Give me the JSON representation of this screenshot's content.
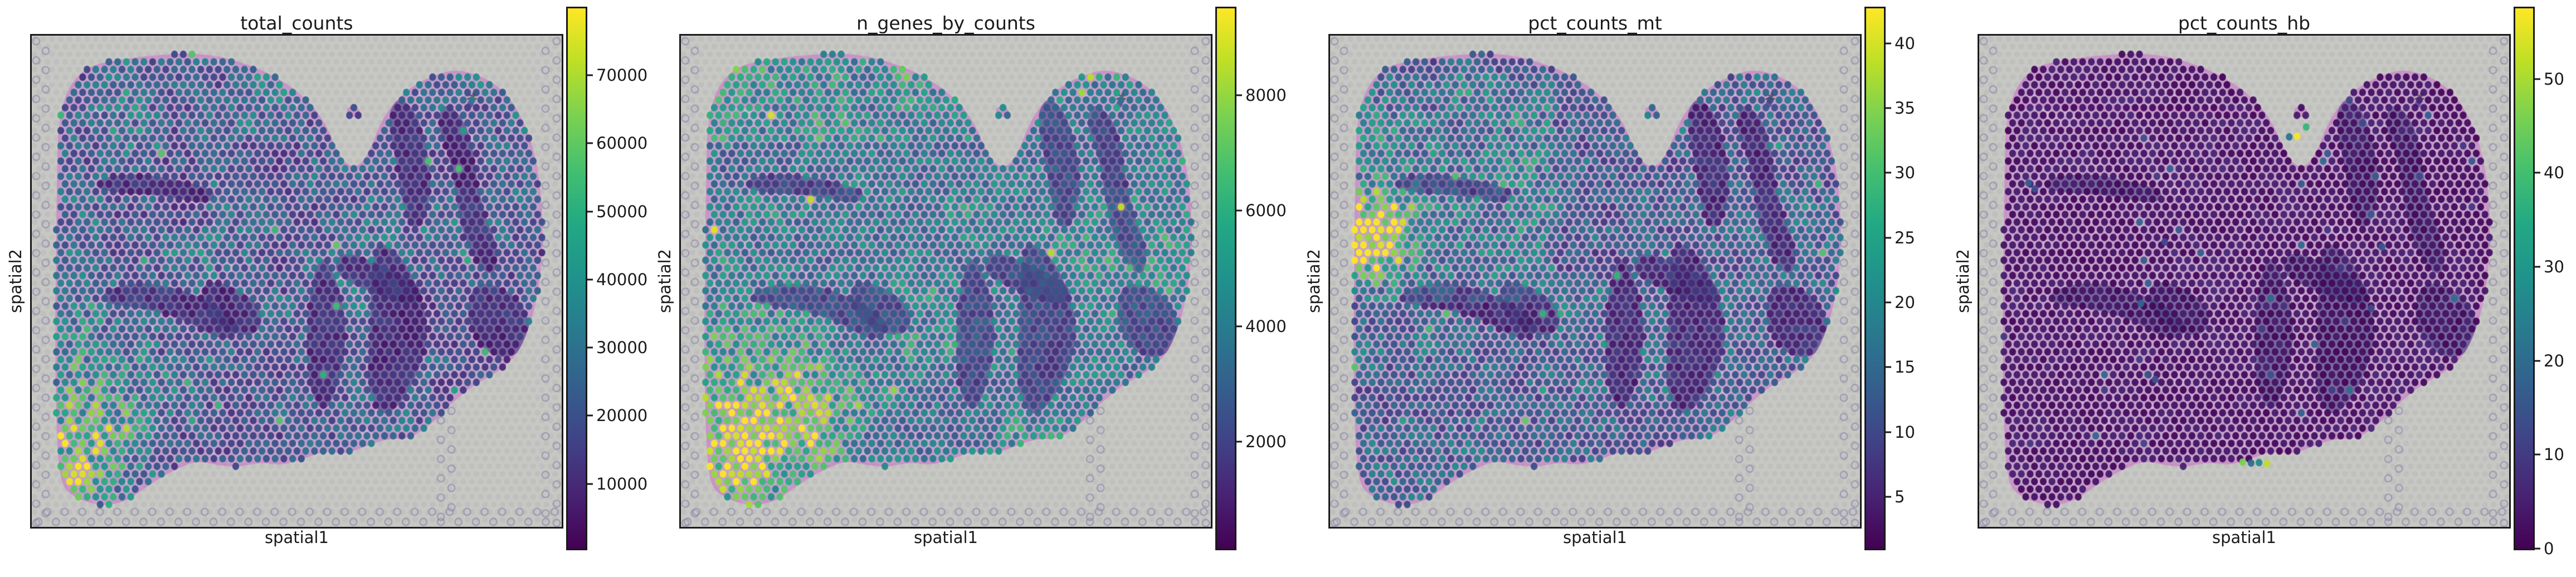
{
  "figure": {
    "kind": "spatial-qc-figure",
    "xlabel": "spatial1",
    "ylabel": "spatial2",
    "colormap": "viridis",
    "background_color": "#ffffff"
  },
  "scene": {
    "background_color": "#c7c8c4",
    "tissue_base_color": "#c2a0c9",
    "tissue_rim_color": "rgba(215,128,198,0.45)",
    "dense_region_color": "rgba(60,60,126,0.40)",
    "fiducial_ring_color": "rgba(130,124,158,0.55)",
    "grid_spacing": [
      15.7,
      13.7
    ],
    "spot_radius": [
      6.1,
      6.7
    ],
    "tissue_outline": [
      [
        0.05,
        0.175
      ],
      [
        0.068,
        0.105
      ],
      [
        0.105,
        0.062
      ],
      [
        0.16,
        0.05
      ],
      [
        0.24,
        0.038
      ],
      [
        0.33,
        0.036
      ],
      [
        0.41,
        0.058
      ],
      [
        0.475,
        0.092
      ],
      [
        0.525,
        0.135
      ],
      [
        0.555,
        0.18
      ],
      [
        0.572,
        0.225
      ],
      [
        0.59,
        0.26
      ],
      [
        0.615,
        0.27
      ],
      [
        0.638,
        0.235
      ],
      [
        0.655,
        0.185
      ],
      [
        0.68,
        0.14
      ],
      [
        0.715,
        0.105
      ],
      [
        0.755,
        0.082
      ],
      [
        0.8,
        0.068
      ],
      [
        0.85,
        0.082
      ],
      [
        0.895,
        0.115
      ],
      [
        0.93,
        0.175
      ],
      [
        0.952,
        0.25
      ],
      [
        0.962,
        0.33
      ],
      [
        0.965,
        0.42
      ],
      [
        0.958,
        0.51
      ],
      [
        0.942,
        0.585
      ],
      [
        0.918,
        0.648
      ],
      [
        0.88,
        0.685
      ],
      [
        0.835,
        0.71
      ],
      [
        0.79,
        0.75
      ],
      [
        0.75,
        0.795
      ],
      [
        0.71,
        0.822
      ],
      [
        0.672,
        0.82
      ],
      [
        0.632,
        0.835
      ],
      [
        0.592,
        0.852
      ],
      [
        0.552,
        0.845
      ],
      [
        0.512,
        0.862
      ],
      [
        0.472,
        0.875
      ],
      [
        0.432,
        0.868
      ],
      [
        0.392,
        0.878
      ],
      [
        0.352,
        0.875
      ],
      [
        0.312,
        0.865
      ],
      [
        0.272,
        0.882
      ],
      [
        0.235,
        0.905
      ],
      [
        0.205,
        0.928
      ],
      [
        0.175,
        0.95
      ],
      [
        0.125,
        0.958
      ],
      [
        0.07,
        0.935
      ],
      [
        0.052,
        0.9
      ],
      [
        0.046,
        0.78
      ],
      [
        0.044,
        0.62
      ],
      [
        0.046,
        0.42
      ],
      [
        0.048,
        0.28
      ]
    ],
    "dense_regions": [
      [
        [
          0.695,
          0.125
        ],
        [
          0.725,
          0.155
        ],
        [
          0.745,
          0.22
        ],
        [
          0.755,
          0.3
        ],
        [
          0.745,
          0.37
        ],
        [
          0.72,
          0.4
        ],
        [
          0.7,
          0.35
        ],
        [
          0.69,
          0.27
        ],
        [
          0.675,
          0.19
        ],
        [
          0.675,
          0.15
        ]
      ],
      [
        [
          0.775,
          0.135
        ],
        [
          0.81,
          0.16
        ],
        [
          0.832,
          0.22
        ],
        [
          0.84,
          0.3
        ],
        [
          0.858,
          0.375
        ],
        [
          0.88,
          0.43
        ],
        [
          0.875,
          0.49
        ],
        [
          0.845,
          0.475
        ],
        [
          0.815,
          0.41
        ],
        [
          0.8,
          0.33
        ],
        [
          0.79,
          0.25
        ],
        [
          0.765,
          0.185
        ]
      ],
      [
        [
          0.845,
          0.5
        ],
        [
          0.895,
          0.515
        ],
        [
          0.933,
          0.555
        ],
        [
          0.942,
          0.615
        ],
        [
          0.905,
          0.66
        ],
        [
          0.855,
          0.645
        ],
        [
          0.822,
          0.585
        ],
        [
          0.825,
          0.53
        ]
      ],
      [
        [
          0.655,
          0.415
        ],
        [
          0.7,
          0.45
        ],
        [
          0.732,
          0.52
        ],
        [
          0.75,
          0.6
        ],
        [
          0.732,
          0.68
        ],
        [
          0.7,
          0.745
        ],
        [
          0.662,
          0.78
        ],
        [
          0.632,
          0.72
        ],
        [
          0.638,
          0.62
        ],
        [
          0.64,
          0.52
        ],
        [
          0.642,
          0.455
        ]
      ],
      [
        [
          0.548,
          0.44
        ],
        [
          0.578,
          0.5
        ],
        [
          0.596,
          0.6
        ],
        [
          0.582,
          0.7
        ],
        [
          0.553,
          0.775
        ],
        [
          0.522,
          0.72
        ],
        [
          0.518,
          0.6
        ],
        [
          0.528,
          0.5
        ]
      ],
      [
        [
          0.582,
          0.435
        ],
        [
          0.66,
          0.465
        ],
        [
          0.745,
          0.515
        ],
        [
          0.72,
          0.555
        ],
        [
          0.635,
          0.52
        ],
        [
          0.568,
          0.485
        ]
      ],
      [
        [
          0.125,
          0.29
        ],
        [
          0.2,
          0.28
        ],
        [
          0.28,
          0.295
        ],
        [
          0.35,
          0.315
        ],
        [
          0.335,
          0.345
        ],
        [
          0.25,
          0.325
        ],
        [
          0.165,
          0.32
        ],
        [
          0.122,
          0.312
        ]
      ],
      [
        [
          0.135,
          0.52
        ],
        [
          0.2,
          0.5
        ],
        [
          0.28,
          0.515
        ],
        [
          0.355,
          0.55
        ],
        [
          0.4,
          0.595
        ],
        [
          0.362,
          0.625
        ],
        [
          0.285,
          0.575
        ],
        [
          0.2,
          0.553
        ],
        [
          0.133,
          0.545
        ]
      ],
      [
        [
          0.325,
          0.495
        ],
        [
          0.395,
          0.515
        ],
        [
          0.44,
          0.565
        ],
        [
          0.422,
          0.615
        ],
        [
          0.36,
          0.6
        ],
        [
          0.318,
          0.55
        ]
      ]
    ],
    "island": {
      "u": 0.607,
      "v": 0.155,
      "rx": 12,
      "ry": 9
    },
    "artifact": {
      "u": 0.829,
      "v": 0.131
    }
  },
  "chart_data": [
    {
      "type": "scatter",
      "title": "total_counts",
      "xlabel": "spatial1",
      "ylabel": "spatial2",
      "colormap": "viridis",
      "legend": "none",
      "colorbar": {
        "vmin": 500,
        "vmax": 79800,
        "ticks": [
          10000,
          20000,
          30000,
          40000,
          50000,
          60000,
          70000
        ]
      },
      "field": {
        "base": 11000,
        "noise_amp": 26000,
        "dense_mult": 0.45,
        "jitter": 0.45,
        "boost_rect": {
          "u0": 0.05,
          "u1": 0.55,
          "v0": 0.03,
          "v1": 0.22,
          "add": 4000
        },
        "hotspots": [
          {
            "u": 0.085,
            "v": 0.85,
            "su": 0.07,
            "sv": 0.08,
            "amp": 42000
          },
          {
            "u": 0.17,
            "v": 0.7,
            "su": 0.06,
            "sv": 0.07,
            "amp": 18000
          },
          {
            "u": 0.05,
            "v": 0.6,
            "su": 0.04,
            "sv": 0.06,
            "amp": 12000
          }
        ],
        "sparse_high": {
          "prob": 0.008,
          "min": 42000,
          "max": 60000
        }
      }
    },
    {
      "type": "scatter",
      "title": "n_genes_by_counts",
      "xlabel": "spatial1",
      "ylabel": "spatial2",
      "colormap": "viridis",
      "legend": "none",
      "colorbar": {
        "vmin": 150,
        "vmax": 9500,
        "ticks": [
          2000,
          4000,
          6000,
          8000
        ]
      },
      "field": {
        "base": 3000,
        "noise_amp": 2600,
        "dense_mult": 0.55,
        "jitter": 0.32,
        "boost_rect": {
          "u0": 0.05,
          "u1": 0.55,
          "v0": 0.03,
          "v1": 0.22,
          "add": 900
        },
        "hotspots": [
          {
            "u": 0.11,
            "v": 0.84,
            "su": 0.09,
            "sv": 0.09,
            "amp": 4800
          },
          {
            "u": 0.22,
            "v": 0.72,
            "su": 0.08,
            "sv": 0.08,
            "amp": 2200
          },
          {
            "u": 0.05,
            "v": 0.62,
            "su": 0.05,
            "sv": 0.06,
            "amp": 1500
          }
        ],
        "sparse_high": {
          "prob": 0.006,
          "min": 7800,
          "max": 9200
        }
      }
    },
    {
      "type": "scatter",
      "title": "pct_counts_mt",
      "xlabel": "spatial1",
      "ylabel": "spatial2",
      "colormap": "viridis",
      "legend": "none",
      "colorbar": {
        "vmin": 1.0,
        "vmax": 42.7,
        "ticks": [
          5,
          10,
          15,
          20,
          25,
          30,
          35,
          40
        ]
      },
      "field": {
        "base": 8.5,
        "noise_amp": 11,
        "dense_mult": 0.4,
        "jitter": 0.4,
        "boost_rect": {
          "u0": 0.03,
          "u1": 0.42,
          "v0": 0.08,
          "v1": 0.55,
          "add": 5
        },
        "hotspots": [
          {
            "u": 0.075,
            "v": 0.42,
            "su": 0.05,
            "sv": 0.05,
            "amp": 26
          },
          {
            "u": 0.13,
            "v": 0.37,
            "su": 0.06,
            "sv": 0.04,
            "amp": 12
          }
        ],
        "sparse_high": {
          "prob": 0.006,
          "min": 24,
          "max": 33
        }
      }
    },
    {
      "type": "scatter",
      "title": "pct_counts_hb",
      "xlabel": "spatial1",
      "ylabel": "spatial2",
      "colormap": "viridis",
      "legend": "none",
      "colorbar": {
        "vmin": 0,
        "vmax": 57.5,
        "ticks": [
          0,
          10,
          20,
          30,
          40,
          50
        ]
      },
      "field": {
        "base": 1.2,
        "noise_amp": 3.6,
        "dense_mult": 0.9,
        "jitter": 0.8,
        "hotspots": [],
        "sparse_high": {
          "prob": 0.012,
          "min": 8,
          "max": 20
        },
        "outliers": [
          {
            "u": 0.6,
            "v": 0.205,
            "value": 57
          },
          {
            "u": 0.585,
            "v": 0.206,
            "value": 22
          },
          {
            "u": 0.617,
            "v": 0.186,
            "value": 38
          },
          {
            "u": 0.497,
            "v": 0.868,
            "value": 46
          },
          {
            "u": 0.513,
            "v": 0.87,
            "value": 20
          },
          {
            "u": 0.528,
            "v": 0.869,
            "value": 27
          },
          {
            "u": 0.543,
            "v": 0.871,
            "value": 52
          },
          {
            "u": 0.305,
            "v": 0.545,
            "value": 18
          },
          {
            "u": 0.318,
            "v": 0.69,
            "value": 16
          },
          {
            "u": 0.332,
            "v": 0.7,
            "value": 14
          },
          {
            "u": 0.76,
            "v": 0.43,
            "value": 15
          },
          {
            "u": 0.74,
            "v": 0.555,
            "value": 13
          },
          {
            "u": 0.093,
            "v": 0.3,
            "value": 17
          },
          {
            "u": 0.105,
            "v": 0.312,
            "value": 14
          },
          {
            "u": 0.35,
            "v": 0.42,
            "value": 12
          }
        ]
      }
    }
  ]
}
